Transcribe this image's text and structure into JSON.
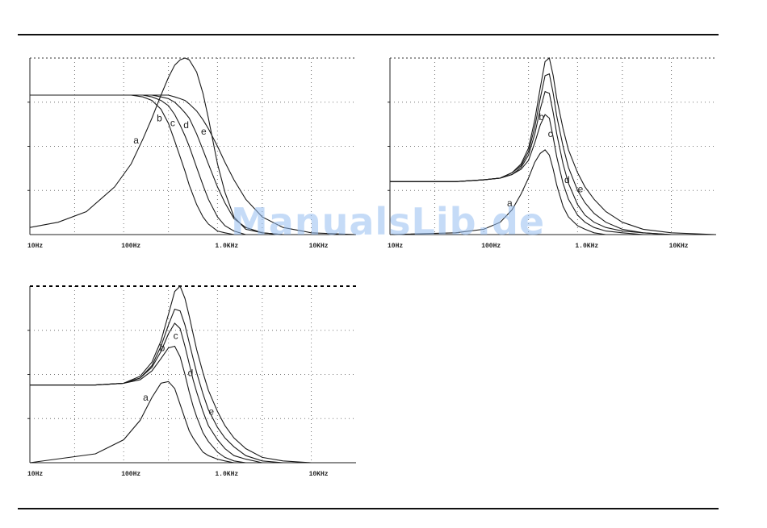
{
  "watermark": "ManualsLib.de",
  "chart_data": [
    {
      "type": "line",
      "xscale": "log",
      "xlim": [
        10,
        30000
      ],
      "ylim": [
        0,
        1
      ],
      "grid": true,
      "x_tick_labels": [
        {
          "x": 10,
          "label": "10Hz"
        },
        {
          "x": 100,
          "label": "100Hz"
        },
        {
          "x": 1000,
          "label": "1.0KHz"
        },
        {
          "x": 10000,
          "label": "10KHz"
        }
      ],
      "x": [
        10,
        20,
        40,
        80,
        120,
        160,
        200,
        250,
        300,
        350,
        400,
        450,
        500,
        600,
        700,
        800,
        1000,
        1200,
        1500,
        2000,
        3000,
        5000,
        10000,
        30000
      ],
      "series": [
        {
          "label": "a",
          "label_at": 158,
          "values": [
            0.04,
            0.07,
            0.13,
            0.27,
            0.4,
            0.54,
            0.66,
            0.79,
            0.89,
            0.96,
            0.99,
            1.0,
            0.99,
            0.92,
            0.8,
            0.66,
            0.4,
            0.24,
            0.1,
            0.03,
            0.01,
            0.0,
            0.0,
            0.0
          ]
        },
        {
          "label": "b",
          "label_at": 280,
          "values": [
            0.79,
            0.79,
            0.79,
            0.79,
            0.79,
            0.78,
            0.76,
            0.71,
            0.63,
            0.53,
            0.44,
            0.36,
            0.28,
            0.17,
            0.1,
            0.06,
            0.02,
            0.01,
            0.0,
            0.0,
            0.0,
            0.0,
            0.0,
            0.0
          ]
        },
        {
          "label": "c",
          "label_at": 390,
          "values": [
            0.79,
            0.79,
            0.79,
            0.79,
            0.79,
            0.79,
            0.78,
            0.76,
            0.73,
            0.68,
            0.62,
            0.56,
            0.5,
            0.38,
            0.28,
            0.2,
            0.1,
            0.05,
            0.02,
            0.0,
            0.0,
            0.0,
            0.0,
            0.0
          ]
        },
        {
          "label": "d",
          "label_at": 540,
          "values": [
            0.79,
            0.79,
            0.79,
            0.79,
            0.79,
            0.79,
            0.79,
            0.78,
            0.77,
            0.75,
            0.72,
            0.69,
            0.66,
            0.57,
            0.48,
            0.4,
            0.27,
            0.18,
            0.09,
            0.04,
            0.01,
            0.0,
            0.0,
            0.0
          ]
        },
        {
          "label": "e",
          "label_at": 830,
          "values": [
            0.79,
            0.79,
            0.79,
            0.79,
            0.79,
            0.79,
            0.79,
            0.79,
            0.79,
            0.78,
            0.77,
            0.76,
            0.74,
            0.7,
            0.65,
            0.6,
            0.5,
            0.41,
            0.31,
            0.2,
            0.1,
            0.04,
            0.01,
            0.0
          ]
        }
      ]
    },
    {
      "type": "line",
      "xscale": "log",
      "xlim": [
        10,
        30000
      ],
      "ylim": [
        0,
        1
      ],
      "grid": true,
      "x_tick_labels": [
        {
          "x": 10,
          "label": "10Hz"
        },
        {
          "x": 100,
          "label": "100Hz"
        },
        {
          "x": 1000,
          "label": "1.0KHz"
        },
        {
          "x": 10000,
          "label": "10KHz"
        }
      ],
      "x": [
        10,
        50,
        100,
        150,
        200,
        250,
        300,
        350,
        400,
        450,
        500,
        550,
        600,
        700,
        800,
        1000,
        1200,
        1500,
        2000,
        3000,
        5000,
        10000,
        30000
      ],
      "series": [
        {
          "label": "a",
          "label_at": 220,
          "values": [
            0.0,
            0.01,
            0.03,
            0.07,
            0.14,
            0.23,
            0.32,
            0.41,
            0.46,
            0.48,
            0.45,
            0.37,
            0.28,
            0.16,
            0.1,
            0.05,
            0.03,
            0.01,
            0.0,
            0.0,
            0.0,
            0.0,
            0.0
          ]
        },
        {
          "label": "b",
          "label_at": 480,
          "values": [
            0.3,
            0.3,
            0.31,
            0.32,
            0.34,
            0.37,
            0.42,
            0.52,
            0.62,
            0.68,
            0.66,
            0.55,
            0.44,
            0.29,
            0.2,
            0.11,
            0.07,
            0.04,
            0.02,
            0.01,
            0.0,
            0.0,
            0.0
          ]
        },
        {
          "label": "c",
          "label_at": 600,
          "values": [
            0.3,
            0.3,
            0.31,
            0.32,
            0.34,
            0.38,
            0.45,
            0.57,
            0.71,
            0.81,
            0.8,
            0.69,
            0.57,
            0.4,
            0.29,
            0.17,
            0.11,
            0.07,
            0.04,
            0.02,
            0.01,
            0.0,
            0.0
          ]
        },
        {
          "label": "d",
          "label_at": 900,
          "values": [
            0.3,
            0.3,
            0.31,
            0.32,
            0.35,
            0.39,
            0.47,
            0.61,
            0.77,
            0.9,
            0.91,
            0.8,
            0.67,
            0.5,
            0.38,
            0.25,
            0.18,
            0.12,
            0.07,
            0.03,
            0.01,
            0.0,
            0.0
          ]
        },
        {
          "label": "e",
          "label_at": 1250,
          "values": [
            0.3,
            0.3,
            0.31,
            0.32,
            0.35,
            0.4,
            0.49,
            0.65,
            0.83,
            0.98,
            1.0,
            0.9,
            0.77,
            0.6,
            0.48,
            0.35,
            0.27,
            0.2,
            0.13,
            0.07,
            0.03,
            0.01,
            0.0
          ]
        }
      ]
    },
    {
      "type": "line",
      "xscale": "log",
      "xlim": [
        10,
        30000
      ],
      "ylim": [
        0,
        1
      ],
      "grid": true,
      "x_tick_labels": [
        {
          "x": 10,
          "label": "10Hz"
        },
        {
          "x": 100,
          "label": "100Hz"
        },
        {
          "x": 1000,
          "label": "1.0KHz"
        },
        {
          "x": 10000,
          "label": "10KHz"
        }
      ],
      "x": [
        10,
        50,
        100,
        150,
        200,
        250,
        300,
        350,
        400,
        450,
        500,
        550,
        600,
        700,
        800,
        1000,
        1200,
        1500,
        2000,
        3000,
        5000,
        10000,
        30000
      ],
      "series": [
        {
          "label": "a",
          "label_at": 200,
          "values": [
            0.0,
            0.05,
            0.13,
            0.24,
            0.37,
            0.45,
            0.46,
            0.42,
            0.33,
            0.25,
            0.18,
            0.14,
            0.11,
            0.06,
            0.04,
            0.02,
            0.01,
            0.0,
            0.0,
            0.0,
            0.0,
            0.0,
            0.0
          ]
        },
        {
          "label": "b",
          "label_at": 300,
          "values": [
            0.44,
            0.44,
            0.45,
            0.47,
            0.52,
            0.59,
            0.65,
            0.66,
            0.6,
            0.5,
            0.4,
            0.32,
            0.26,
            0.17,
            0.12,
            0.06,
            0.03,
            0.01,
            0.0,
            0.0,
            0.0,
            0.0,
            0.0
          ]
        },
        {
          "label": "c",
          "label_at": 420,
          "values": [
            0.44,
            0.44,
            0.45,
            0.48,
            0.54,
            0.63,
            0.73,
            0.79,
            0.76,
            0.66,
            0.56,
            0.47,
            0.4,
            0.29,
            0.21,
            0.13,
            0.08,
            0.04,
            0.02,
            0.0,
            0.0,
            0.0,
            0.0
          ]
        },
        {
          "label": "d",
          "label_at": 600,
          "values": [
            0.44,
            0.44,
            0.45,
            0.48,
            0.55,
            0.66,
            0.78,
            0.87,
            0.86,
            0.78,
            0.68,
            0.59,
            0.51,
            0.39,
            0.3,
            0.2,
            0.14,
            0.09,
            0.04,
            0.01,
            0.0,
            0.0,
            0.0
          ]
        },
        {
          "label": "e",
          "label_at": 1000,
          "values": [
            0.44,
            0.44,
            0.45,
            0.49,
            0.57,
            0.69,
            0.84,
            0.97,
            1.0,
            0.93,
            0.83,
            0.73,
            0.64,
            0.51,
            0.41,
            0.29,
            0.21,
            0.14,
            0.08,
            0.03,
            0.01,
            0.0,
            0.0
          ]
        }
      ]
    }
  ]
}
